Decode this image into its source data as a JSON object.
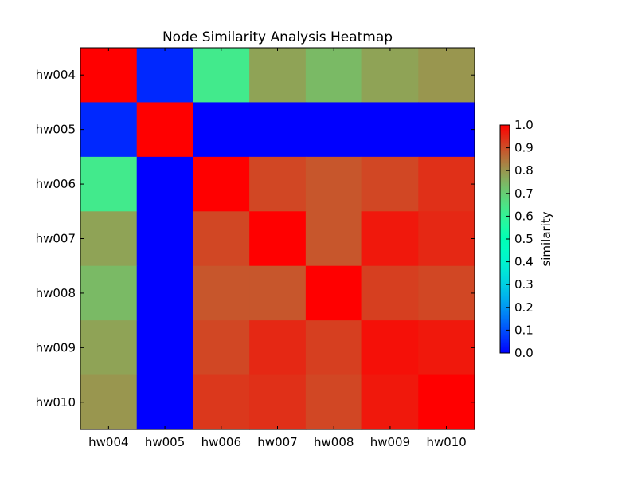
{
  "chart_data": {
    "type": "heatmap",
    "title": "Node Similarity Analysis Heatmap",
    "x_labels": [
      "hw004",
      "hw005",
      "hw006",
      "hw007",
      "hw008",
      "hw009",
      "hw010"
    ],
    "y_labels": [
      "hw004",
      "hw005",
      "hw006",
      "hw007",
      "hw008",
      "hw009",
      "hw010"
    ],
    "values": [
      [
        1.0,
        0.05,
        0.63,
        0.78,
        0.74,
        0.78,
        0.8
      ],
      [
        0.05,
        1.0,
        0.0,
        0.0,
        0.0,
        0.0,
        0.0
      ],
      [
        0.63,
        0.0,
        1.0,
        0.91,
        0.89,
        0.91,
        0.94
      ],
      [
        0.78,
        0.0,
        0.91,
        1.0,
        0.89,
        0.97,
        0.95
      ],
      [
        0.74,
        0.0,
        0.89,
        0.89,
        1.0,
        0.92,
        0.91
      ],
      [
        0.78,
        0.0,
        0.91,
        0.95,
        0.92,
        0.98,
        0.97
      ],
      [
        0.8,
        0.0,
        0.93,
        0.94,
        0.91,
        0.97,
        1.0
      ]
    ],
    "colorbar": {
      "label": "similarity",
      "range": [
        0.0,
        1.0
      ],
      "ticks": [
        "0.0",
        "0.1",
        "0.2",
        "0.3",
        "0.4",
        "0.5",
        "0.6",
        "0.7",
        "0.8",
        "0.9",
        "1.0"
      ],
      "colormap": "rainbow",
      "placement": "right"
    },
    "grid": false
  }
}
